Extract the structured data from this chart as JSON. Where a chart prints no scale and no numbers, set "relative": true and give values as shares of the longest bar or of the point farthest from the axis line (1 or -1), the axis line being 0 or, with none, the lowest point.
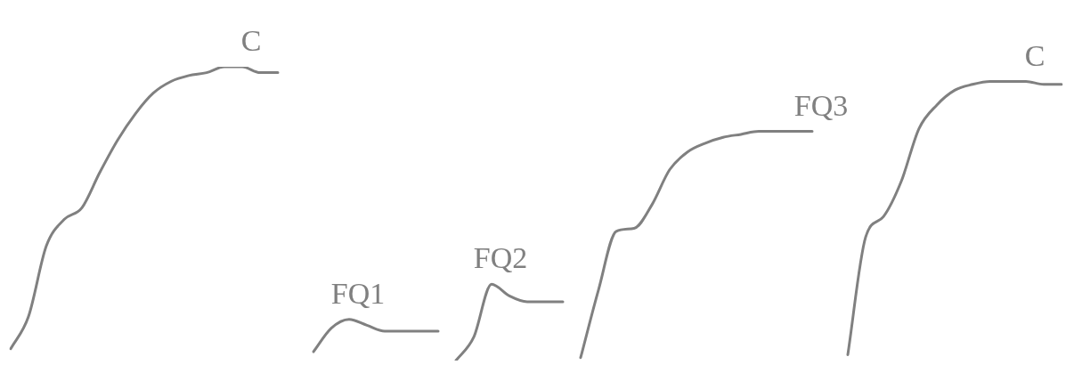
{
  "chart_data": {
    "type": "line",
    "relative": true,
    "marker": "none",
    "legend": false,
    "categories": [
      null,
      null,
      null,
      null,
      null,
      null,
      null,
      null,
      null,
      null,
      null,
      null,
      null,
      null,
      null,
      null,
      null,
      null,
      null,
      null,
      null,
      null,
      null,
      null,
      null,
      null,
      null,
      null,
      null,
      null,
      null,
      null,
      null,
      null,
      null,
      null,
      null,
      null,
      null,
      null,
      null,
      null,
      null,
      null,
      null,
      null,
      null,
      null,
      null,
      null,
      null,
      null,
      null,
      null,
      null,
      null,
      null,
      null,
      null,
      null
    ],
    "series": [
      {
        "name": "C",
        "color": "#808080",
        "values": [
          0.04,
          0.15,
          0.39,
          0.48,
          0.52,
          0.64,
          0.75,
          0.84,
          0.91,
          0.95,
          0.97,
          0.98,
          1,
          1,
          0.98,
          0.98,
          null,
          null,
          null,
          null,
          null,
          null,
          null,
          null,
          null,
          null,
          null,
          null,
          null,
          null,
          null,
          null,
          null,
          null,
          null,
          null,
          null,
          null,
          null,
          null,
          null,
          null,
          null,
          null,
          null,
          null,
          null,
          null,
          null,
          null,
          null,
          null,
          null,
          null,
          null,
          null,
          null,
          null,
          null,
          null
        ]
      },
      {
        "name": "FQ1",
        "color": "#808080",
        "values": [
          null,
          null,
          null,
          null,
          null,
          null,
          null,
          null,
          null,
          null,
          null,
          null,
          null,
          null,
          null,
          null,
          null,
          0.03,
          0.11,
          0.14,
          0.12,
          0.1,
          0.1,
          0.1,
          0.1,
          null,
          null,
          null,
          null,
          null,
          null,
          null,
          null,
          null,
          null,
          null,
          null,
          null,
          null,
          null,
          null,
          null,
          null,
          null,
          null,
          null,
          null,
          null,
          null,
          null,
          null,
          null,
          null,
          null,
          null,
          null,
          null,
          null,
          null,
          null
        ]
      },
      {
        "name": "FQ2",
        "color": "#808080",
        "values": [
          null,
          null,
          null,
          null,
          null,
          null,
          null,
          null,
          null,
          null,
          null,
          null,
          null,
          null,
          null,
          null,
          null,
          null,
          null,
          null,
          null,
          null,
          null,
          null,
          null,
          0,
          0.08,
          0.26,
          0.22,
          0.2,
          0.2,
          0.2,
          null,
          null,
          null,
          null,
          null,
          null,
          null,
          null,
          null,
          null,
          null,
          null,
          null,
          null,
          null,
          null,
          null,
          null,
          null,
          null,
          null,
          null,
          null,
          null,
          null,
          null,
          null,
          null
        ]
      },
      {
        "name": "FQ3",
        "color": "#808080",
        "values": [
          null,
          null,
          null,
          null,
          null,
          null,
          null,
          null,
          null,
          null,
          null,
          null,
          null,
          null,
          null,
          null,
          null,
          null,
          null,
          null,
          null,
          null,
          null,
          null,
          null,
          null,
          null,
          null,
          null,
          null,
          null,
          null,
          0.01,
          0.24,
          0.44,
          0.45,
          0.53,
          0.65,
          0.71,
          0.74,
          0.76,
          0.77,
          0.78,
          0.78,
          0.78,
          0.78,
          null,
          null,
          null,
          null,
          null,
          null,
          null,
          null,
          null,
          null,
          null,
          null,
          null,
          null
        ]
      },
      {
        "name": "C",
        "color": "#808080",
        "values": [
          null,
          null,
          null,
          null,
          null,
          null,
          null,
          null,
          null,
          null,
          null,
          null,
          null,
          null,
          null,
          null,
          null,
          null,
          null,
          null,
          null,
          null,
          null,
          null,
          null,
          null,
          null,
          null,
          null,
          null,
          null,
          null,
          null,
          null,
          null,
          null,
          null,
          null,
          null,
          null,
          null,
          null,
          null,
          null,
          null,
          null,
          null,
          0.02,
          0.42,
          0.49,
          0.61,
          0.79,
          0.87,
          0.92,
          0.94,
          0.95,
          0.95,
          0.95,
          0.94,
          0.94
        ]
      }
    ]
  }
}
